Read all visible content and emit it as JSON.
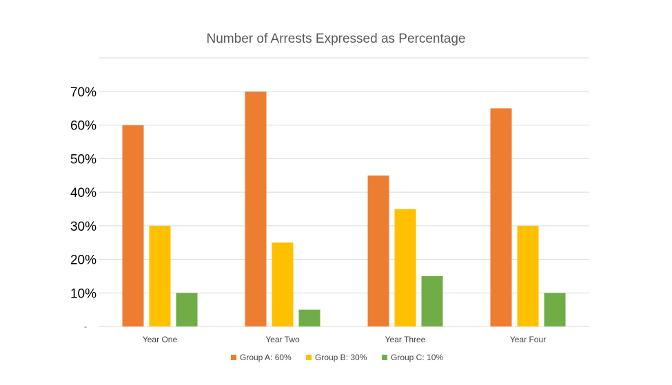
{
  "chart_data": {
    "type": "bar",
    "title": "Number of Arrests Expressed as Percentage",
    "categories": [
      "Year One",
      "Year Two",
      "Year Three",
      "Year Four"
    ],
    "series": [
      {
        "name": "Group A: 60%",
        "color": "#ED7D31",
        "values": [
          60,
          70,
          45,
          65
        ]
      },
      {
        "name": "Group B: 30%",
        "color": "#FFC000",
        "values": [
          30,
          25,
          35,
          30
        ]
      },
      {
        "name": "Group C: 10%",
        "color": "#70AD47",
        "values": [
          10,
          5,
          15,
          10
        ]
      }
    ],
    "xlabel": "",
    "ylabel": "",
    "ylim": [
      0,
      70
    ],
    "y_ticks": [
      {
        "value": 0,
        "label": "-"
      },
      {
        "value": 10,
        "label": "10%"
      },
      {
        "value": 20,
        "label": "20%"
      },
      {
        "value": 30,
        "label": "30%"
      },
      {
        "value": 40,
        "label": "40%"
      },
      {
        "value": 50,
        "label": "50%"
      },
      {
        "value": 60,
        "label": "60%"
      },
      {
        "value": 70,
        "label": "70%"
      }
    ],
    "grid": true,
    "legend_position": "bottom"
  }
}
